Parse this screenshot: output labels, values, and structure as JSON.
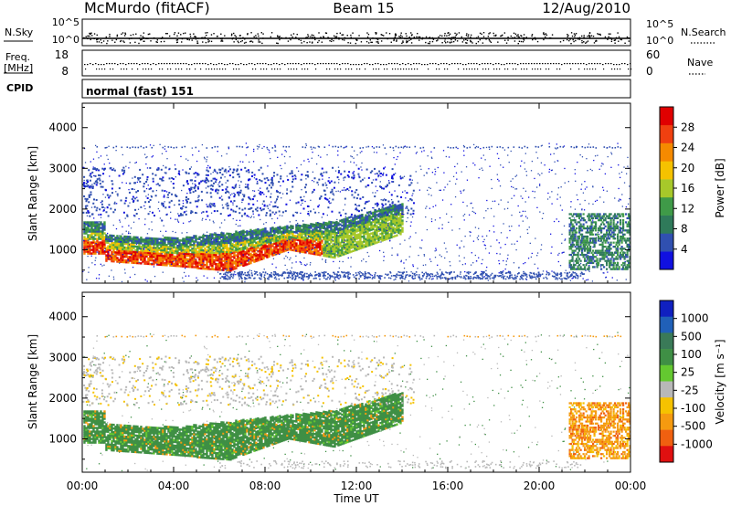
{
  "header": {
    "station": "McMurdo (fitACF)",
    "beam": "Beam 15",
    "date": "12/Aug/2010"
  },
  "strip_labels": {
    "nsky": "N.Sky",
    "freq_line1": "Freq.",
    "freq_line2": "[MHz]",
    "cpid": "CPID",
    "nsearch": "N.Search",
    "nave": "Nave",
    "nsky_tick_top": "10^5",
    "nsky_tick_bottom": "10^0",
    "nsearch_tick_top": "10^5",
    "nsearch_tick_bottom": "10^0",
    "freq_tick_top": "18",
    "freq_tick_bottom": "8",
    "nave_tick_top": "60",
    "nave_tick_bottom": "0",
    "cpid_text": "normal (fast) 151"
  },
  "chart_data": [
    {
      "type": "heatmap",
      "panel": "power",
      "ylabel": "Slant Range [km]",
      "yticks": [
        1000,
        2000,
        3000,
        4000
      ],
      "ylim": [
        180,
        4600
      ],
      "colorbar": {
        "label": "Power [dB]",
        "ticks": [
          4,
          8,
          12,
          16,
          20,
          24,
          28
        ]
      }
    },
    {
      "type": "heatmap",
      "panel": "velocity",
      "ylabel": "Slant Range [km]",
      "yticks": [
        1000,
        2000,
        3000,
        4000
      ],
      "ylim": [
        180,
        4600
      ],
      "colorbar": {
        "label": "Velocity [m s⁻¹]",
        "ticks": [
          "1000",
          "500",
          "100",
          "25",
          "-25",
          "-100",
          "-500",
          "-1000"
        ]
      }
    }
  ],
  "xaxis": {
    "label": "Time UT",
    "ticks": [
      "00:00",
      "04:00",
      "08:00",
      "12:00",
      "16:00",
      "20:00",
      "00:00"
    ],
    "range_hours": [
      0,
      24
    ]
  },
  "colors": {
    "power_scale": [
      "#1010e0",
      "#3050b0",
      "#2f7a5a",
      "#3f9a48",
      "#a7c82a",
      "#f5c200",
      "#f58a00",
      "#f04010",
      "#e00000"
    ],
    "velocity_scale": [
      "#1020c0",
      "#2060b8",
      "#3a7a58",
      "#3f8f45",
      "#64c830",
      "#b8b8b8",
      "#f5c200",
      "#f59a10",
      "#f06010",
      "#e01010"
    ]
  }
}
